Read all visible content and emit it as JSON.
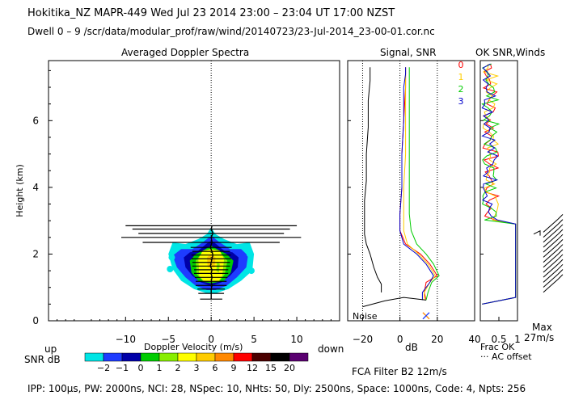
{
  "header": {
    "line1": "Hokitika_NZ   MAPR-449   Wed Jul 23 2014 23:00 – 23:04 UT 17:00 NZST",
    "line2": "Dwell   0 –  9    /scr/data/modular_prof/raw/wind/20140723/23-Jul-2014_23-00-01.cor.nc"
  },
  "footer": {
    "fca": "FCA Filter B2 12m/s",
    "params": "IPP: 100μs,  PW: 2000ns,  NCI:  28,  NSpec: 10, NHts: 50,  Dly: 2500ns,  Space: 1000ns,  Code: 4,  Npts: 256"
  },
  "colors": {
    "snr_scale": [
      "#00e5e5",
      "#1e3cff",
      "#0000a8",
      "#00cc00",
      "#88ee00",
      "#ffff00",
      "#ffcc00",
      "#ff8800",
      "#ff0000",
      "#4a0000",
      "#000000",
      "#5a0070"
    ],
    "series": [
      "#ff0000",
      "#ffcc00",
      "#00cc00",
      "#0000cc"
    ]
  },
  "chart_data": [
    {
      "type": "heatmap",
      "title": "Averaged Doppler Spectra",
      "xlabel": "Doppler Velocity (m/s)",
      "ylabel": "Height (km)",
      "xlim": [
        -19,
        15
      ],
      "ylim": [
        0,
        7.8
      ],
      "x_ticks": [
        "−10",
        "−5",
        "0",
        "5",
        "10"
      ],
      "y_ticks": [
        "0",
        "2",
        "4",
        "6"
      ],
      "x_end_labels": {
        "left": "up",
        "right": "down"
      },
      "colorbar": {
        "label": "SNR dB",
        "tick_labels": [
          "−2",
          "−1",
          "0",
          "1",
          "2",
          "3",
          "6",
          "9",
          "12",
          "15",
          "20"
        ]
      }
    },
    {
      "type": "line",
      "title": "Signal, SNR",
      "xlabel": "dB",
      "xlim": [
        -28,
        40
      ],
      "ylim": [
        0,
        7.8
      ],
      "x_ticks": [
        "−20",
        "0",
        "20",
        "40"
      ],
      "annotation": "Noise",
      "series": [
        {
          "name": "0",
          "color": "#ff0000",
          "x": [
            14,
            13,
            14,
            20,
            16,
            11,
            3,
            0,
            0,
            1,
            1,
            2,
            3,
            3,
            3
          ],
          "y": [
            0.62,
            0.85,
            1.15,
            1.35,
            1.7,
            2.0,
            2.3,
            2.7,
            3.2,
            4.0,
            5.0,
            6.0,
            7.0,
            7.4,
            7.6
          ]
        },
        {
          "name": "1",
          "color": "#ffcc00",
          "x": [
            13,
            13,
            16,
            19,
            15,
            10,
            4,
            2,
            2,
            2,
            3,
            3,
            3,
            3,
            3
          ],
          "y": [
            0.62,
            0.85,
            1.15,
            1.35,
            1.7,
            2.0,
            2.3,
            2.7,
            3.2,
            4.0,
            5.0,
            6.0,
            7.0,
            7.4,
            7.6
          ]
        },
        {
          "name": "2",
          "color": "#00cc00",
          "x": [
            14,
            15,
            17,
            21,
            18,
            14,
            9,
            6,
            5,
            5,
            5,
            5,
            5,
            5,
            5
          ],
          "y": [
            0.62,
            0.85,
            1.15,
            1.35,
            1.7,
            2.0,
            2.3,
            2.7,
            3.2,
            4.0,
            5.0,
            6.0,
            7.0,
            7.4,
            7.6
          ]
        },
        {
          "name": "3",
          "color": "#0000cc",
          "x": [
            12,
            12,
            16,
            18,
            14,
            9,
            2,
            0,
            0,
            1,
            1,
            2,
            2,
            3,
            3
          ],
          "y": [
            0.62,
            0.85,
            1.15,
            1.35,
            1.7,
            2.0,
            2.3,
            2.7,
            3.2,
            4.0,
            5.0,
            6.0,
            7.0,
            7.4,
            7.6
          ]
        }
      ]
    },
    {
      "type": "line",
      "title": "OK SNR,Winds",
      "xlabel": "Frac OK",
      "xlim": [
        0,
        1
      ],
      "x_ticks": [
        "0.5",
        "1"
      ],
      "legend_labels": [
        "0",
        "1",
        "2",
        "3"
      ],
      "extra_labels": {
        "ac_offset": "··· AC offset",
        "max_label": "Max",
        "max_value": "27m/s"
      }
    }
  ]
}
